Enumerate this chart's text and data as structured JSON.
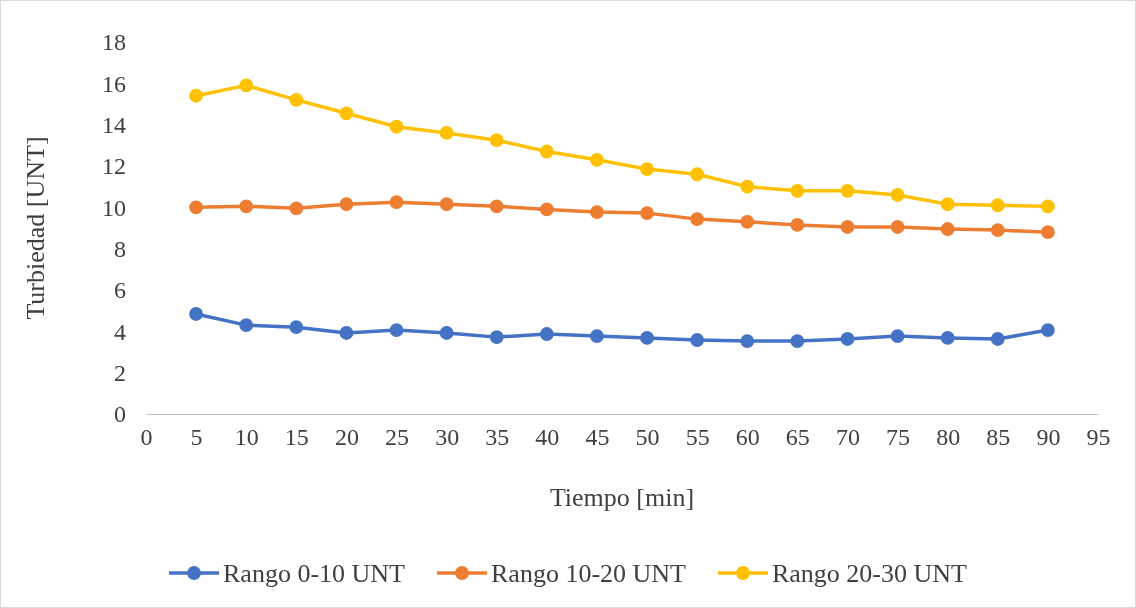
{
  "chart_data": {
    "type": "line",
    "xlabel": "Tiempo [min]",
    "ylabel": "Turbiedad [UNT]",
    "x": [
      5,
      10,
      15,
      20,
      25,
      30,
      35,
      40,
      45,
      50,
      55,
      60,
      65,
      70,
      75,
      80,
      85,
      90
    ],
    "xlim": [
      0,
      95
    ],
    "xticks": [
      0,
      5,
      10,
      15,
      20,
      25,
      30,
      35,
      40,
      45,
      50,
      55,
      60,
      65,
      70,
      75,
      80,
      85,
      90,
      95
    ],
    "ylim": [
      0,
      18
    ],
    "yticks": [
      0,
      2,
      4,
      6,
      8,
      10,
      12,
      14,
      16,
      18
    ],
    "marker": "circle",
    "legend": "bottom",
    "series": [
      {
        "name": "Rango 0-10 UNT",
        "color": "#4472c4",
        "values": [
          4.84,
          4.3,
          4.2,
          3.92,
          4.06,
          3.92,
          3.72,
          3.87,
          3.77,
          3.68,
          3.58,
          3.53,
          3.53,
          3.63,
          3.77,
          3.68,
          3.63,
          4.06
        ]
      },
      {
        "name": "Rango 10-20 UNT",
        "color": "#ed7d31",
        "values": [
          10.0,
          10.05,
          9.95,
          10.15,
          10.25,
          10.15,
          10.05,
          9.9,
          9.77,
          9.72,
          9.43,
          9.3,
          9.15,
          9.05,
          9.05,
          8.95,
          8.9,
          8.8
        ]
      },
      {
        "name": "Rango 20-30 UNT",
        "color": "#ffc000",
        "values": [
          15.4,
          15.9,
          15.2,
          14.55,
          13.9,
          13.6,
          13.25,
          12.7,
          12.3,
          11.85,
          11.6,
          11.0,
          10.8,
          10.8,
          10.6,
          10.15,
          10.1,
          10.05
        ]
      }
    ]
  }
}
